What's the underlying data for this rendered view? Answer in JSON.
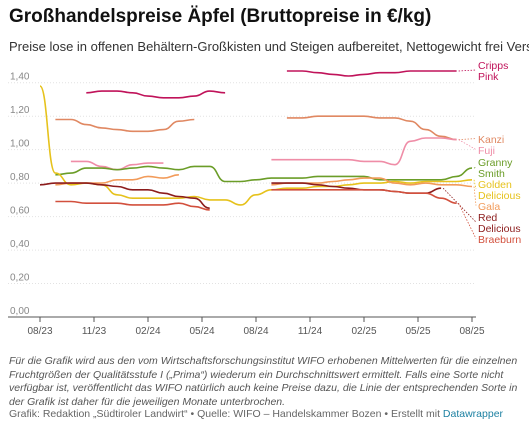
{
  "title": "Großhandelspreise Äpfel (Bruttopreise in €/kg)",
  "subtitle": "Preise lose in offenen Behältern-Großkisten und Steigen aufbereitet, Nettogewicht frei Versand",
  "notes": "Für die Grafik wird aus den vom Wirtschaftsforschungsinstitut WIFO erhobenen Mittelwerten für die einzelnen Fruchtgrößen der Qualitätsstufe I („Prima“) wiederum ein Durchschnittswert ermittelt. Falls eine Sorte nicht verfügbar ist, veröffentlicht das WIFO natürlich auch keine Preise dazu, die Linie der entsprechenden Sorte in der Grafik ist daher für die jeweiligen Monate unterbrochen.",
  "footer": {
    "credit": "Grafik: Redaktion „Südtiroler Landwirt“ • Quelle: WIFO – Handelskammer Bozen • Erstellt mit ",
    "tool": "Datawrapper"
  },
  "chart_data": {
    "type": "line",
    "x_ticks": [
      "08/23",
      "11/23",
      "02/24",
      "05/24",
      "08/24",
      "11/24",
      "02/25",
      "05/25",
      "08/25"
    ],
    "y_ticks": [
      "0,00",
      "0,20",
      "0,40",
      "0,60",
      "0,80",
      "1,00",
      "1,20",
      "1,40"
    ],
    "ylim": [
      0,
      1.5
    ],
    "grid": true,
    "series": [
      {
        "name": "Cripps Pink",
        "label_lines": [
          "Cripps",
          "Pink"
        ],
        "color": "#c0135a",
        "values": [
          null,
          null,
          null,
          1.34,
          1.35,
          1.35,
          1.34,
          1.32,
          1.31,
          1.31,
          1.32,
          1.35,
          1.34,
          null,
          null,
          null,
          1.47,
          1.47,
          1.46,
          1.45,
          1.44,
          1.45,
          1.46,
          1.46,
          1.47,
          1.47,
          1.47,
          1.47,
          null
        ]
      },
      {
        "name": "Kanzi",
        "label_lines": [
          "Kanzi"
        ],
        "color": "#e08862",
        "values": [
          null,
          1.18,
          1.18,
          1.15,
          1.13,
          1.12,
          1.11,
          1.11,
          1.12,
          1.17,
          1.18,
          null,
          null,
          null,
          null,
          null,
          1.19,
          1.19,
          1.2,
          1.2,
          1.2,
          1.2,
          1.19,
          1.19,
          1.17,
          1.12,
          1.08,
          1.06,
          null
        ]
      },
      {
        "name": "Fuji",
        "label_lines": [
          "Fuji"
        ],
        "color": "#ef8da7",
        "values": [
          null,
          null,
          0.93,
          0.93,
          0.9,
          0.88,
          0.91,
          0.92,
          0.92,
          null,
          null,
          null,
          null,
          null,
          null,
          0.94,
          0.94,
          0.94,
          0.94,
          0.94,
          0.94,
          0.93,
          0.93,
          0.91,
          1.05,
          1.07,
          1.07,
          1.06,
          null
        ]
      },
      {
        "name": "Granny Smith",
        "label_lines": [
          "Granny",
          "Smith"
        ],
        "color": "#6b9d28",
        "values": [
          null,
          0.85,
          0.86,
          0.89,
          0.89,
          0.88,
          0.89,
          0.9,
          0.89,
          0.88,
          0.9,
          0.9,
          0.81,
          0.81,
          0.82,
          0.83,
          0.83,
          0.83,
          0.84,
          0.84,
          0.84,
          0.84,
          0.82,
          0.82,
          0.82,
          0.82,
          0.82,
          0.84,
          0.89
        ]
      },
      {
        "name": "Golden Delicious",
        "label_lines": [
          "Golden",
          "Delicious"
        ],
        "color": "#e6c21c",
        "values": [
          1.38,
          0.86,
          0.79,
          0.8,
          0.79,
          0.73,
          0.71,
          0.71,
          0.71,
          0.71,
          0.72,
          0.7,
          0.7,
          0.67,
          0.73,
          0.76,
          0.77,
          0.77,
          0.78,
          0.78,
          0.79,
          0.8,
          0.8,
          0.81,
          0.8,
          0.81,
          0.81,
          0.81,
          0.82
        ]
      },
      {
        "name": "Gala",
        "label_lines": [
          "Gala"
        ],
        "color": "#f29b5a",
        "values": [
          null,
          0.79,
          0.8,
          0.8,
          0.8,
          0.82,
          0.82,
          0.84,
          0.83,
          0.85,
          null,
          null,
          null,
          null,
          null,
          0.79,
          0.8,
          0.8,
          0.8,
          0.81,
          0.82,
          0.83,
          0.83,
          0.8,
          0.79,
          0.8,
          0.79,
          0.79,
          0.78
        ]
      },
      {
        "name": "Red Delicious",
        "label_lines": [
          "Red",
          "Delicious"
        ],
        "color": "#8c1c1c",
        "values": [
          0.79,
          0.8,
          0.8,
          0.8,
          0.79,
          0.78,
          0.76,
          0.76,
          0.74,
          0.72,
          0.71,
          0.65,
          null,
          null,
          null,
          0.8,
          0.8,
          0.8,
          0.79,
          0.78,
          0.77,
          0.76,
          0.76,
          0.75,
          0.74,
          0.74,
          0.77,
          null,
          null
        ]
      },
      {
        "name": "Braeburn",
        "label_lines": [
          "Braeburn"
        ],
        "color": "#d2503d",
        "values": [
          null,
          0.69,
          0.69,
          0.68,
          0.68,
          0.68,
          0.67,
          0.67,
          0.67,
          0.68,
          0.66,
          0.64,
          null,
          null,
          null,
          0.76,
          0.76,
          0.76,
          0.76,
          0.76,
          0.76,
          0.76,
          0.76,
          0.75,
          0.74,
          0.74,
          0.71,
          0.68,
          null
        ]
      }
    ]
  }
}
